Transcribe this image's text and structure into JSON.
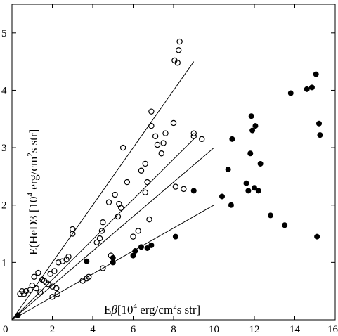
{
  "chart_data": {
    "type": "scatter",
    "title": "",
    "xlabel_parts": {
      "e": "E",
      "beta": "β",
      "open": "[10",
      "exp": "4",
      "mid": " erg/cm",
      "sq": "2",
      "tail": "s str]"
    },
    "ylabel_parts": {
      "e": "E(HeD3 [10",
      "exp": "4",
      "mid": " erg/cm",
      "sq": "2",
      "tail": "s str]"
    },
    "xlim": [
      0,
      16
    ],
    "ylim": [
      0,
      5.5
    ],
    "x_ticks": [
      0,
      2,
      4,
      6,
      8,
      10,
      12,
      14,
      16
    ],
    "y_ticks": [
      0,
      1,
      2,
      3,
      4,
      5
    ],
    "grid": false,
    "colors": {
      "axis": "#000000",
      "marker": "#000000",
      "background": "#ffffff"
    },
    "series": [
      {
        "marker": "open-circle",
        "points": [
          [
            0.4,
            0.45
          ],
          [
            0.5,
            0.5
          ],
          [
            0.6,
            0.45
          ],
          [
            0.7,
            0.5
          ],
          [
            0.9,
            0.52
          ],
          [
            1.0,
            0.6
          ],
          [
            1.1,
            0.75
          ],
          [
            1.2,
            0.55
          ],
          [
            1.3,
            0.82
          ],
          [
            1.4,
            0.48
          ],
          [
            1.5,
            0.7
          ],
          [
            1.6,
            0.68
          ],
          [
            1.7,
            0.65
          ],
          [
            1.8,
            0.62
          ],
          [
            1.9,
            0.8
          ],
          [
            2.0,
            0.4
          ],
          [
            2.0,
            0.58
          ],
          [
            2.1,
            0.85
          ],
          [
            2.2,
            0.55
          ],
          [
            2.25,
            0.45
          ],
          [
            2.3,
            1.0
          ],
          [
            2.5,
            1.02
          ],
          [
            2.7,
            1.05
          ],
          [
            2.8,
            1.1
          ],
          [
            3.0,
            1.5
          ],
          [
            3.0,
            1.58
          ],
          [
            3.5,
            0.68
          ],
          [
            3.7,
            0.72
          ],
          [
            3.8,
            0.75
          ],
          [
            4.2,
            1.35
          ],
          [
            4.35,
            1.42
          ],
          [
            4.45,
            1.55
          ],
          [
            4.5,
            0.9
          ],
          [
            4.5,
            1.7
          ],
          [
            4.8,
            2.05
          ],
          [
            4.9,
            1.12
          ],
          [
            5.1,
            2.18
          ],
          [
            5.25,
            1.8
          ],
          [
            5.3,
            2.02
          ],
          [
            5.4,
            1.95
          ],
          [
            5.5,
            3.0
          ],
          [
            5.7,
            2.4
          ],
          [
            6.0,
            1.45
          ],
          [
            6.25,
            1.55
          ],
          [
            6.4,
            2.6
          ],
          [
            6.6,
            2.72
          ],
          [
            6.6,
            2.22
          ],
          [
            6.7,
            2.4
          ],
          [
            6.8,
            1.75
          ],
          [
            6.9,
            3.63
          ],
          [
            6.9,
            3.38
          ],
          [
            7.1,
            3.2
          ],
          [
            7.2,
            3.05
          ],
          [
            7.4,
            2.9
          ],
          [
            7.5,
            3.08
          ],
          [
            7.6,
            3.25
          ],
          [
            8.0,
            3.43
          ],
          [
            8.05,
            4.52
          ],
          [
            8.1,
            2.32
          ],
          [
            8.2,
            4.48
          ],
          [
            8.25,
            4.7
          ],
          [
            8.3,
            4.85
          ],
          [
            8.5,
            2.28
          ],
          [
            9.0,
            3.2
          ],
          [
            9.0,
            3.25
          ],
          [
            9.4,
            3.15
          ]
        ]
      },
      {
        "marker": "filled-circle",
        "points": [
          [
            0.3,
            0.08
          ],
          [
            3.7,
            1.02
          ],
          [
            5.0,
            1.0
          ],
          [
            5.0,
            1.08
          ],
          [
            6.0,
            1.12
          ],
          [
            6.1,
            1.2
          ],
          [
            6.4,
            1.27
          ],
          [
            6.7,
            1.25
          ],
          [
            6.9,
            1.3
          ],
          [
            8.1,
            1.45
          ],
          [
            9.0,
            2.25
          ],
          [
            10.4,
            2.15
          ],
          [
            10.7,
            2.62
          ],
          [
            10.85,
            2.0
          ],
          [
            10.9,
            3.15
          ],
          [
            11.6,
            2.38
          ],
          [
            11.7,
            2.25
          ],
          [
            11.8,
            2.9
          ],
          [
            11.85,
            3.55
          ],
          [
            11.9,
            3.3
          ],
          [
            12.0,
            2.3
          ],
          [
            12.05,
            3.38
          ],
          [
            12.2,
            2.25
          ],
          [
            12.3,
            2.72
          ],
          [
            12.8,
            1.82
          ],
          [
            13.5,
            1.65
          ],
          [
            13.8,
            3.95
          ],
          [
            14.6,
            4.02
          ],
          [
            14.85,
            4.05
          ],
          [
            15.05,
            4.28
          ],
          [
            15.1,
            1.45
          ],
          [
            15.2,
            3.42
          ],
          [
            15.25,
            3.22
          ]
        ]
      }
    ],
    "reference_lines": [
      {
        "slope": 0.5,
        "x": [
          0,
          9
        ]
      },
      {
        "slope": 0.35,
        "x": [
          0,
          9
        ]
      },
      {
        "slope": 0.3,
        "x": [
          0,
          10
        ]
      },
      {
        "slope": 0.2,
        "x": [
          0,
          10
        ]
      }
    ]
  }
}
